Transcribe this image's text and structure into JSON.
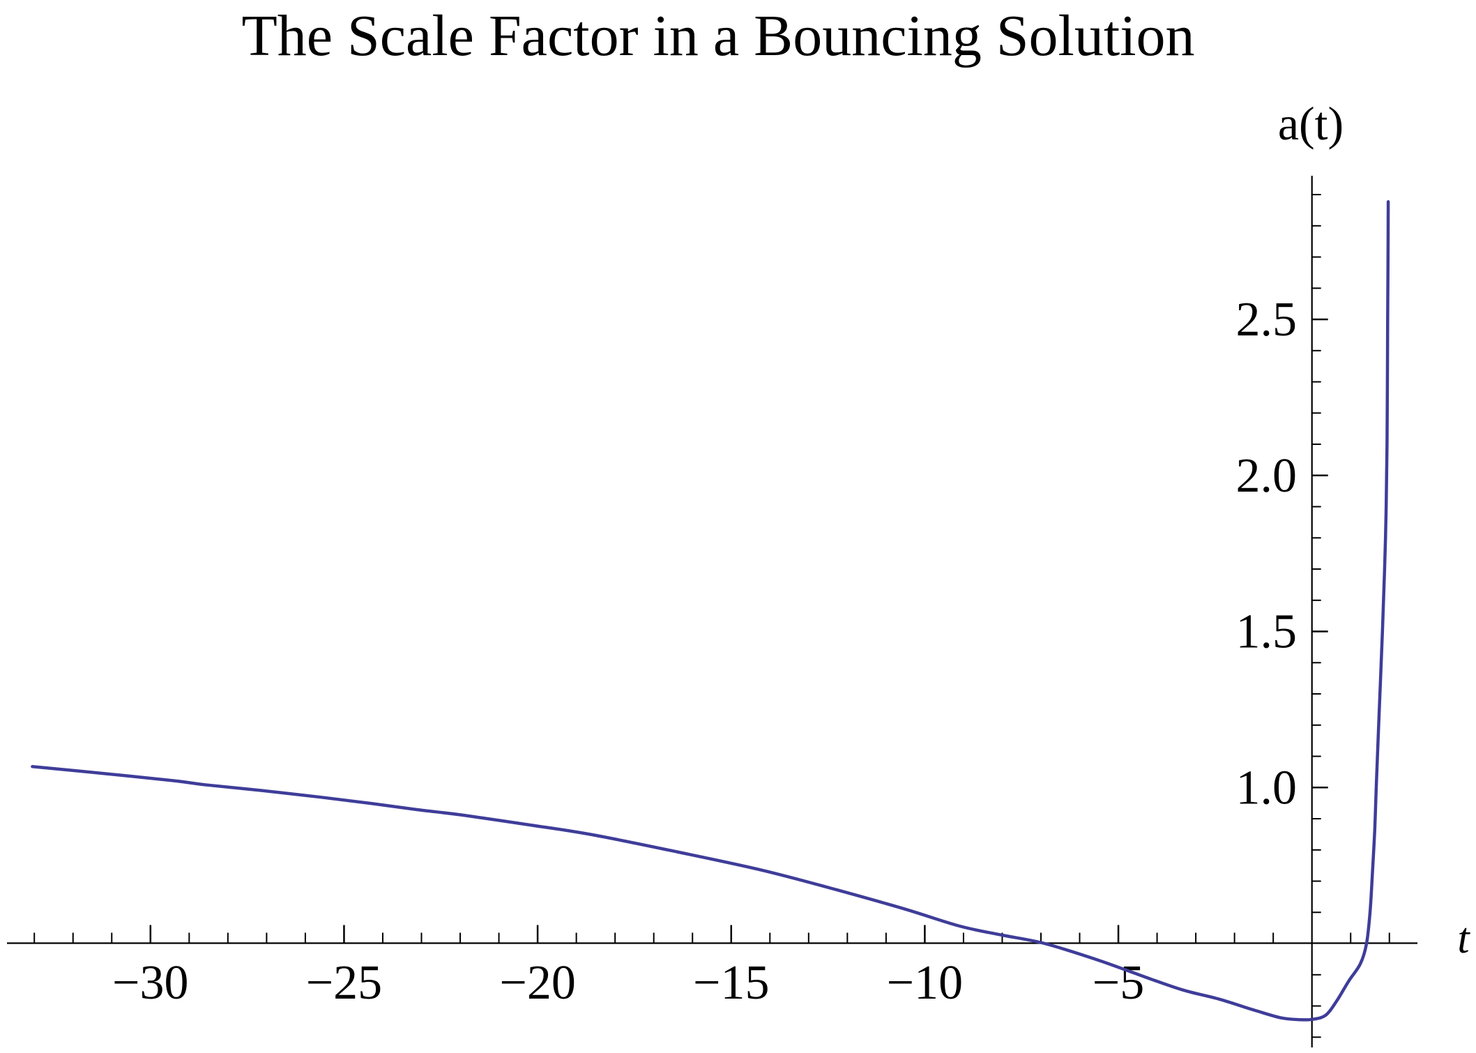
{
  "page": {
    "background": "#ffffff"
  },
  "chart_data": {
    "type": "line",
    "title": "The Scale Factor in a Bouncing Solution",
    "xlabel": "t",
    "ylabel": "a(t)",
    "x_range": [
      -33.7,
      2.7
    ],
    "y_range": [
      0.17,
      2.96
    ],
    "axes_origin": [
      0,
      0.5
    ],
    "grid": false,
    "legend": null,
    "axis_color": "#000000",
    "x_major_ticks": [
      {
        "v": -30,
        "label": "−30"
      },
      {
        "v": -25,
        "label": "−25"
      },
      {
        "v": -20,
        "label": "−20"
      },
      {
        "v": -15,
        "label": "−15"
      },
      {
        "v": -10,
        "label": "−10"
      },
      {
        "v": -5,
        "label": "−5"
      }
    ],
    "x_minor_tick_step": 1,
    "y_major_ticks": [
      {
        "v": 1.0,
        "label": "1.0"
      },
      {
        "v": 1.5,
        "label": "1.5"
      },
      {
        "v": 2.0,
        "label": "2.0"
      },
      {
        "v": 2.5,
        "label": "2.5"
      }
    ],
    "y_minor_tick_step": 0.1,
    "y_minor_tick_range": [
      0.2,
      2.9
    ],
    "x_minor_tick_range": [
      -33,
      2
    ],
    "series": [
      {
        "name": "a(t)",
        "color": "#3F3D99",
        "points": [
          [
            -33.05,
            1.067
          ],
          [
            -31.2,
            1.045
          ],
          [
            -29.4,
            1.022
          ],
          [
            -28.6,
            1.009
          ],
          [
            -27.1,
            0.99
          ],
          [
            -25.6,
            0.969
          ],
          [
            -24.3,
            0.949
          ],
          [
            -23.1,
            0.929
          ],
          [
            -21.9,
            0.911
          ],
          [
            -20.2,
            0.88
          ],
          [
            -18.6,
            0.849
          ],
          [
            -16.4,
            0.794
          ],
          [
            -14.2,
            0.735
          ],
          [
            -12.3,
            0.673
          ],
          [
            -10.5,
            0.61
          ],
          [
            -9.1,
            0.556
          ],
          [
            -8.0,
            0.527
          ],
          [
            -6.9,
            0.5
          ],
          [
            -5.5,
            0.446
          ],
          [
            -4.2,
            0.388
          ],
          [
            -3.3,
            0.35
          ],
          [
            -2.4,
            0.322
          ],
          [
            -1.5,
            0.287
          ],
          [
            -0.8,
            0.262
          ],
          [
            -0.3,
            0.256
          ],
          [
            0.0,
            0.257
          ],
          [
            0.35,
            0.27
          ],
          [
            0.65,
            0.318
          ],
          [
            0.95,
            0.38
          ],
          [
            1.25,
            0.435
          ],
          [
            1.41,
            0.5
          ],
          [
            1.5,
            0.6
          ],
          [
            1.56,
            0.72
          ],
          [
            1.62,
            0.86
          ],
          [
            1.66,
            1.0
          ],
          [
            1.74,
            1.25
          ],
          [
            1.82,
            1.5
          ],
          [
            1.9,
            1.8
          ],
          [
            1.94,
            2.1
          ],
          [
            1.955,
            2.5
          ],
          [
            1.965,
            2.7
          ],
          [
            1.97,
            2.877
          ]
        ]
      }
    ]
  }
}
